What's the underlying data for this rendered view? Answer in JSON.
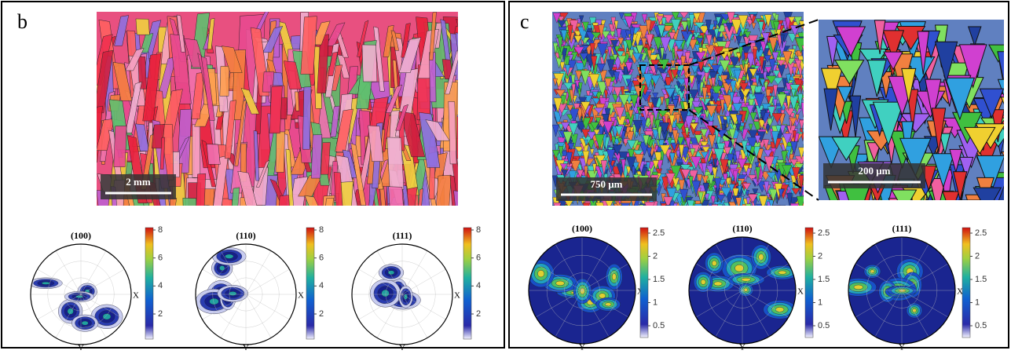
{
  "panels": [
    {
      "label": "b",
      "map": {
        "scale_bar": "2 mm"
      },
      "pole_figures": [
        {
          "title": "(100)",
          "x_label": "X",
          "y_label": "Y"
        },
        {
          "title": "(110)",
          "x_label": "X",
          "y_label": "Y"
        },
        {
          "title": "(111)",
          "x_label": "X",
          "y_label": "Y"
        }
      ],
      "colorbar_ticks": [
        2,
        4,
        6,
        8
      ]
    },
    {
      "label": "c",
      "map": {
        "scale_bar": "750 μm"
      },
      "inset": {
        "scale_bar": "200 μm"
      },
      "pole_figures": [
        {
          "title": "(100)",
          "x_label": "X",
          "y_label": "Y"
        },
        {
          "title": "(110)",
          "x_label": "X",
          "y_label": "Y"
        },
        {
          "title": "(111)",
          "x_label": "X",
          "y_label": "Y"
        }
      ],
      "colorbar_ticks": [
        0.5,
        1,
        1.5,
        2,
        2.5
      ]
    }
  ]
}
